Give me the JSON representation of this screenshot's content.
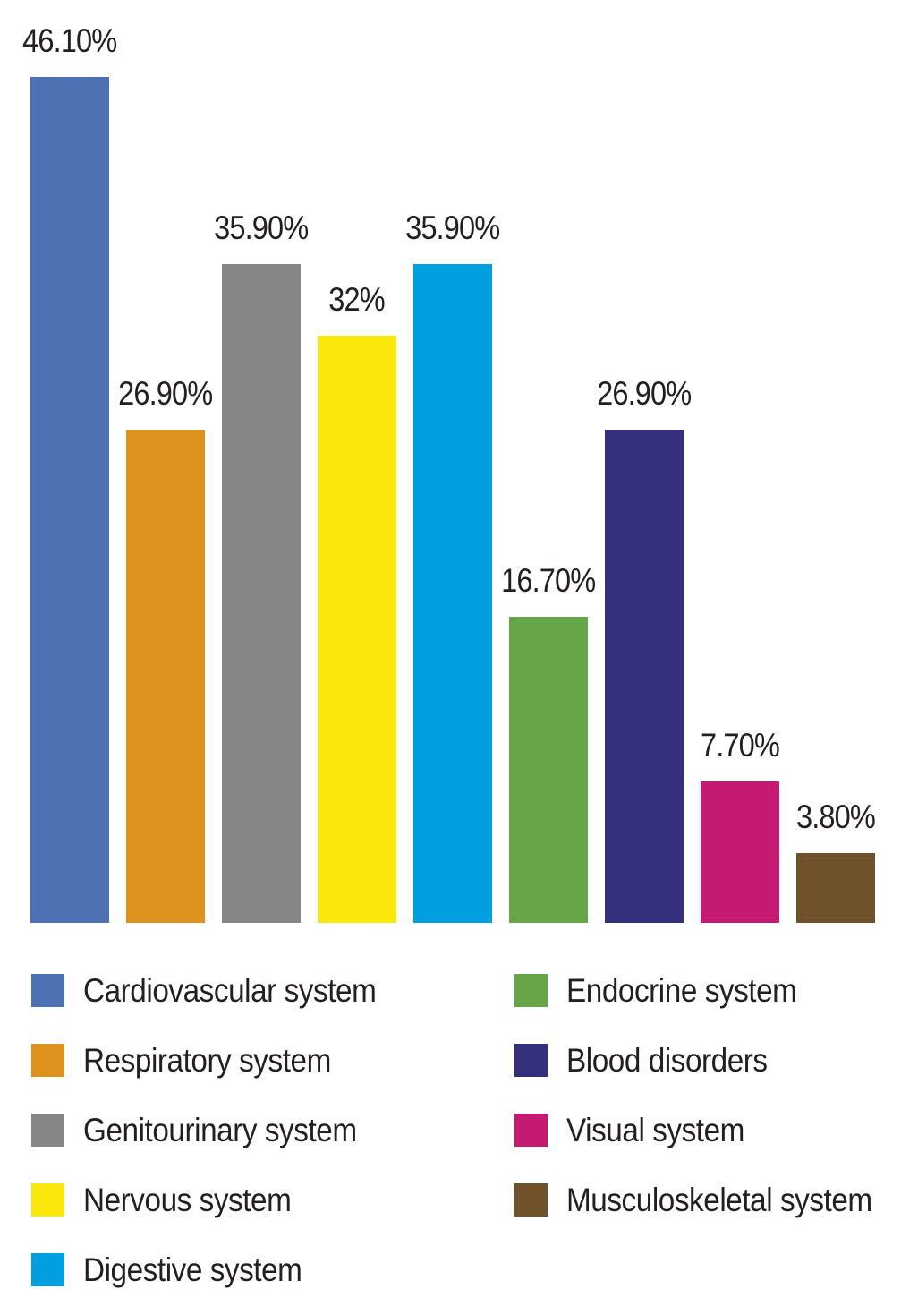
{
  "chart_data": {
    "type": "bar",
    "title": "",
    "xlabel": "",
    "ylabel": "",
    "ylim": [
      0,
      50
    ],
    "grid": false,
    "axes_visible": false,
    "legend_position": "bottom",
    "categories": [
      "Cardiovascular system",
      "Respiratory system",
      "Genitourinary system",
      "Nervous system",
      "Digestive system",
      "Endocrine system",
      "Blood disorders",
      "Visual system",
      "Musculoskeletal system"
    ],
    "values": [
      46.1,
      26.9,
      35.9,
      32,
      35.9,
      16.7,
      26.9,
      7.7,
      3.8
    ],
    "value_labels": [
      "46.10%",
      "26.90%",
      "35.90%",
      "32%",
      "35.90%",
      "16.70%",
      "26.90%",
      "7.70%",
      "3.80%"
    ],
    "colors": [
      "#4c72b4",
      "#dd921e",
      "#868686",
      "#fae80c",
      "#009fe0",
      "#67a646",
      "#34307e",
      "#c41a72",
      "#70522a"
    ]
  },
  "legend": {
    "columns": [
      [
        {
          "label": "Cardiovascular system",
          "color": "#4c72b4"
        },
        {
          "label": "Respiratory system",
          "color": "#dd921e"
        },
        {
          "label": "Genitourinary system",
          "color": "#868686"
        },
        {
          "label": "Nervous system",
          "color": "#fae80c"
        },
        {
          "label": "Digestive system",
          "color": "#009fe0"
        }
      ],
      [
        {
          "label": "Endocrine system",
          "color": "#67a646"
        },
        {
          "label": "Blood disorders",
          "color": "#34307e"
        },
        {
          "label": "Visual system",
          "color": "#c41a72"
        },
        {
          "label": "Musculoskeletal system",
          "color": "#70522a"
        }
      ]
    ]
  },
  "style": {
    "text_color": "#231f20",
    "background": "#ffffff"
  }
}
